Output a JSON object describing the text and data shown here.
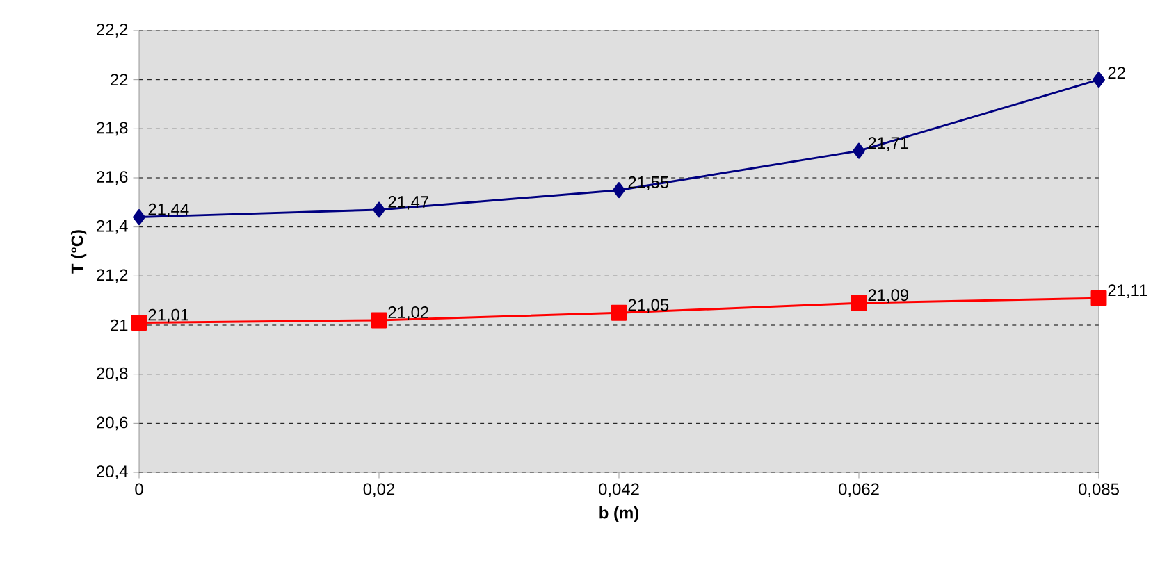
{
  "chart_data": {
    "type": "line",
    "xlabel": "b (m)",
    "ylabel": "T (°C)",
    "categories": [
      "0",
      "0,02",
      "0,042",
      "0,062",
      "0,085"
    ],
    "series": [
      {
        "color": "#000080",
        "marker": "diamond",
        "values": [
          21.44,
          21.47,
          21.55,
          21.71,
          22.0
        ],
        "value_labels": [
          "21,44",
          "21,47",
          "21,55",
          "21,71",
          "22"
        ]
      },
      {
        "color": "#ff0000",
        "marker": "square",
        "values": [
          21.01,
          21.02,
          21.05,
          21.09,
          21.11
        ],
        "value_labels": [
          "21,01",
          "21,02",
          "21,05",
          "21,09",
          "21,11"
        ]
      }
    ],
    "ylim": [
      20.4,
      22.2
    ],
    "yticks": [
      {
        "value": 20.4,
        "label": "20,4"
      },
      {
        "value": 20.6,
        "label": "20,6"
      },
      {
        "value": 20.8,
        "label": "20,8"
      },
      {
        "value": 21,
        "label": "21"
      },
      {
        "value": 21.2,
        "label": "21,2"
      },
      {
        "value": 21.4,
        "label": "21,4"
      },
      {
        "value": 21.6,
        "label": "21,6"
      },
      {
        "value": 21.8,
        "label": "21,8"
      },
      {
        "value": 22,
        "label": "22"
      },
      {
        "value": 22.2,
        "label": "22,2"
      }
    ],
    "grid": "y"
  }
}
